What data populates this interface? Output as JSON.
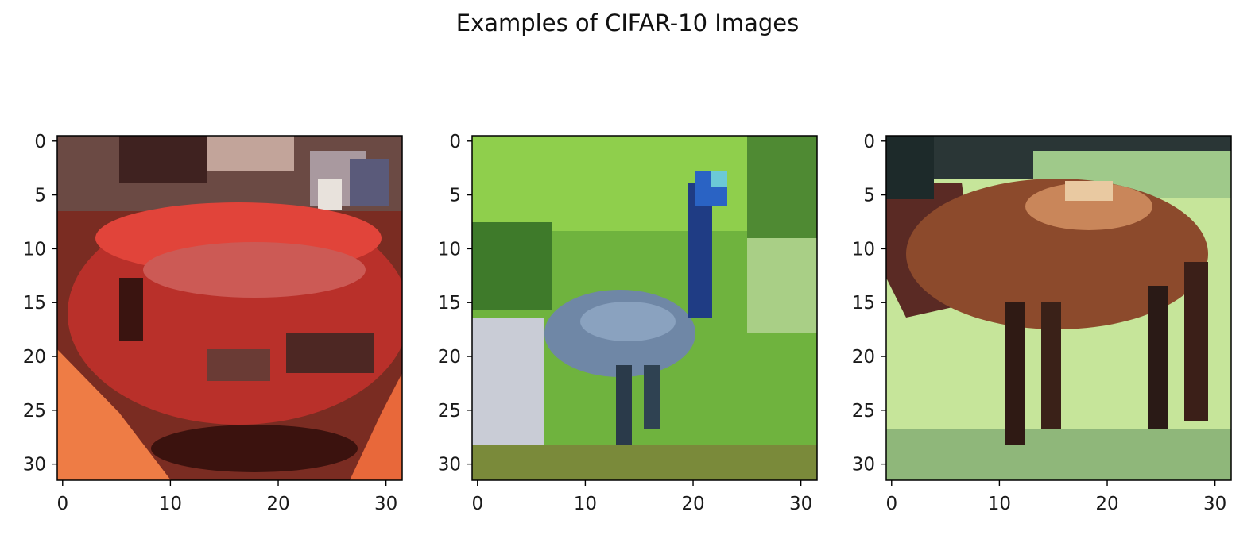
{
  "title": "Examples of CIFAR-10 Images",
  "chart_data": [
    {
      "type": "heatmap",
      "description_colors": [
        "#c93a2d",
        "#e5472f",
        "#ed7a3c",
        "#4d1a12",
        "#8f6a5a",
        "#d7c6c4",
        "#b9382e",
        "#5a2519"
      ],
      "xticks": [
        0,
        10,
        20,
        30
      ],
      "yticks": [
        0,
        5,
        10,
        15,
        20,
        25,
        30
      ],
      "xlim": [
        -0.5,
        31.5
      ],
      "ylim": [
        31.5,
        -0.5
      ],
      "grid": false
    },
    {
      "type": "heatmap",
      "description_colors": [
        "#6fbf3a",
        "#9ee043",
        "#3e7e28",
        "#22449e",
        "#6f87a6",
        "#c8ccd6",
        "#2a63c4",
        "#5c9a33"
      ],
      "xticks": [
        0,
        10,
        20,
        30
      ],
      "yticks": [
        0,
        5,
        10,
        15,
        20,
        25,
        30
      ],
      "xlim": [
        -0.5,
        31.5
      ],
      "ylim": [
        31.5,
        -0.5
      ],
      "grid": false
    },
    {
      "type": "heatmap",
      "description_colors": [
        "#1d2a2a",
        "#c6e59a",
        "#8c4a2c",
        "#5d2a22",
        "#a25a34",
        "#93b77c",
        "#e9c9a1",
        "#3a1a14"
      ],
      "xticks": [
        0,
        10,
        20,
        30
      ],
      "yticks": [
        0,
        5,
        10,
        15,
        20,
        25,
        30
      ],
      "xlim": [
        -0.5,
        31.5
      ],
      "ylim": [
        31.5,
        -0.5
      ],
      "grid": false
    }
  ]
}
